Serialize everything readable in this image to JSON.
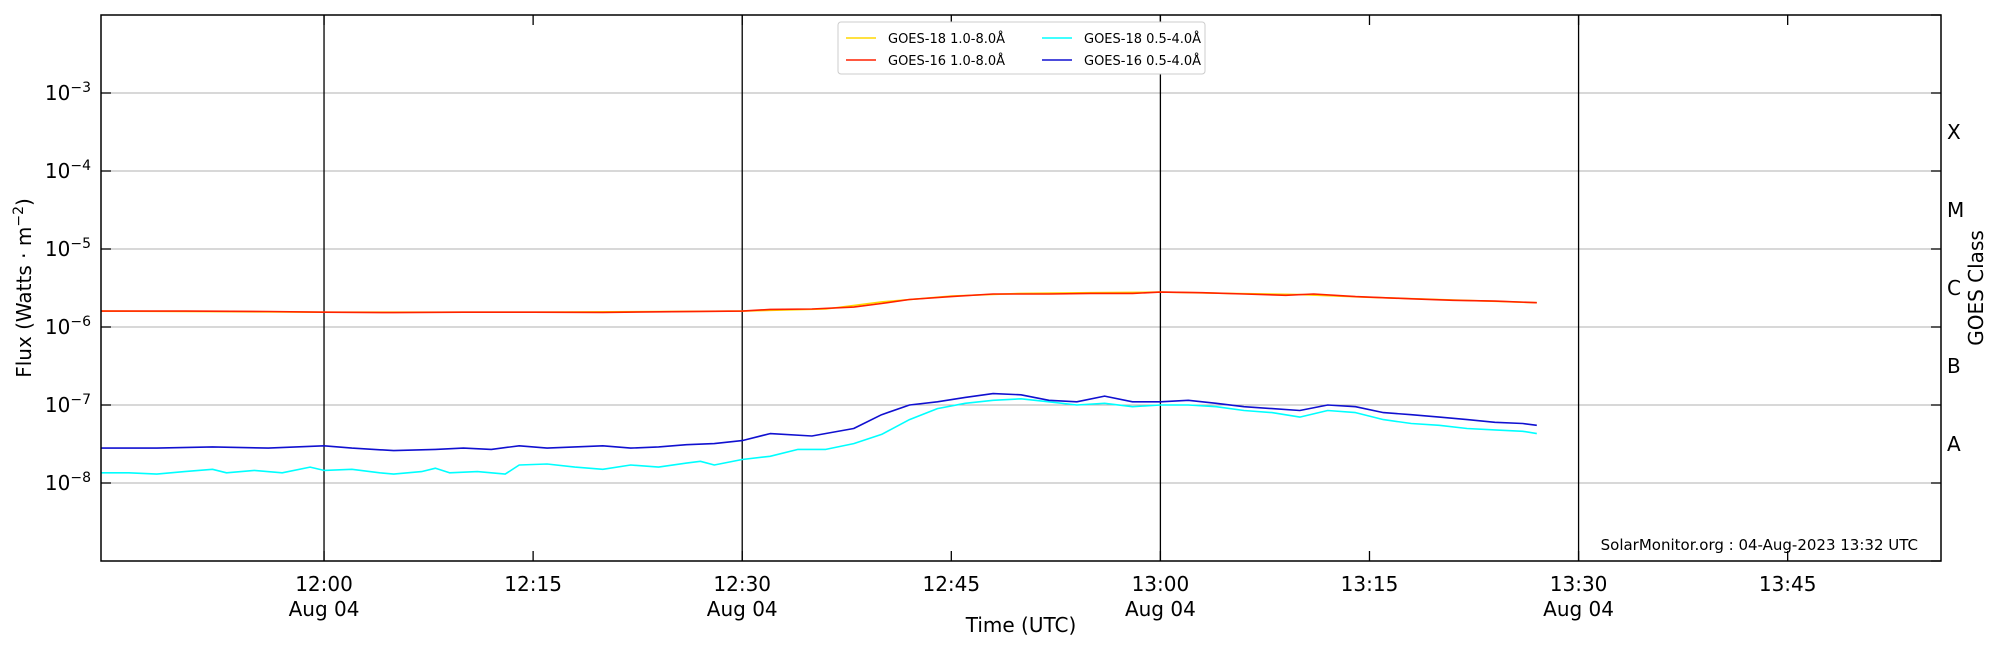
{
  "chart_data": {
    "type": "line",
    "xlabel": "Time (UTC)",
    "ylabel_main": "Flux (Watts · m",
    "ylabel_exp": "−2",
    "ylabel_close": ")",
    "y2label": "GOES Class",
    "yscale": "log",
    "xlim": [
      "11:44",
      "13:56"
    ],
    "ylim": [
      1e-09,
      0.01
    ],
    "grid": "horizontal at each decade",
    "x_ticks": [
      {
        "time": "12:00",
        "label": "12:00",
        "date": "Aug 04",
        "major": true
      },
      {
        "time": "12:15",
        "label": "12:15",
        "date": "",
        "major": false
      },
      {
        "time": "12:30",
        "label": "12:30",
        "date": "Aug 04",
        "major": true
      },
      {
        "time": "12:45",
        "label": "12:45",
        "date": "",
        "major": false
      },
      {
        "time": "13:00",
        "label": "13:00",
        "date": "Aug 04",
        "major": true
      },
      {
        "time": "13:15",
        "label": "13:15",
        "date": "",
        "major": false
      },
      {
        "time": "13:30",
        "label": "13:30",
        "date": "Aug 04",
        "major": true
      },
      {
        "time": "13:45",
        "label": "13:45",
        "date": "",
        "major": false
      }
    ],
    "y_ticks": [
      {
        "exp": -8,
        "label_base": "10",
        "label_exp": "−8"
      },
      {
        "exp": -7,
        "label_base": "10",
        "label_exp": "−7"
      },
      {
        "exp": -6,
        "label_base": "10",
        "label_exp": "−6"
      },
      {
        "exp": -5,
        "label_base": "10",
        "label_exp": "−5"
      },
      {
        "exp": -4,
        "label_base": "10",
        "label_exp": "−4"
      },
      {
        "exp": -3,
        "label_base": "10",
        "label_exp": "−3"
      }
    ],
    "goes_classes": [
      {
        "label": "A",
        "exp": -7.5
      },
      {
        "label": "B",
        "exp": -6.5
      },
      {
        "label": "C",
        "exp": -5.5
      },
      {
        "label": "M",
        "exp": -4.5
      },
      {
        "label": "X",
        "exp": -3.5
      }
    ],
    "legend_position": "top-center",
    "legend": [
      {
        "name": "GOES-18 1.0-8.0Å",
        "color": "#ffd700"
      },
      {
        "name": "GOES-16 1.0-8.0Å",
        "color": "#ff2000"
      },
      {
        "name": "GOES-18 0.5-4.0Å",
        "color": "#00ffff"
      },
      {
        "name": "GOES-16 0.5-4.0Å",
        "color": "#1010d0"
      }
    ],
    "series": [
      {
        "name": "GOES-18 1.0-8.0Å",
        "color": "#ffd700",
        "points": [
          [
            "11:44",
            1.6e-06
          ],
          [
            "12:00",
            1.55e-06
          ],
          [
            "12:15",
            1.55e-06
          ],
          [
            "12:30",
            1.6e-06
          ],
          [
            "12:36",
            1.7e-06
          ],
          [
            "12:40",
            2.1e-06
          ],
          [
            "12:45",
            2.5e-06
          ],
          [
            "12:50",
            2.7e-06
          ],
          [
            "12:55",
            2.75e-06
          ],
          [
            "13:00",
            2.8e-06
          ],
          [
            "13:05",
            2.7e-06
          ],
          [
            "13:10",
            2.6e-06
          ],
          [
            "13:15",
            2.4e-06
          ],
          [
            "13:20",
            2.25e-06
          ],
          [
            "13:27",
            2.05e-06
          ]
        ]
      },
      {
        "name": "GOES-16 1.0-8.0Å",
        "color": "#ff2000",
        "points": [
          [
            "11:44",
            1.6e-06
          ],
          [
            "11:50",
            1.6e-06
          ],
          [
            "11:56",
            1.58e-06
          ],
          [
            "12:00",
            1.55e-06
          ],
          [
            "12:05",
            1.53e-06
          ],
          [
            "12:10",
            1.55e-06
          ],
          [
            "12:15",
            1.55e-06
          ],
          [
            "12:20",
            1.54e-06
          ],
          [
            "12:25",
            1.57e-06
          ],
          [
            "12:30",
            1.6e-06
          ],
          [
            "12:32",
            1.68e-06
          ],
          [
            "12:35",
            1.7e-06
          ],
          [
            "12:38",
            1.8e-06
          ],
          [
            "12:40",
            2e-06
          ],
          [
            "12:42",
            2.25e-06
          ],
          [
            "12:45",
            2.45e-06
          ],
          [
            "12:48",
            2.65e-06
          ],
          [
            "12:52",
            2.65e-06
          ],
          [
            "12:55",
            2.7e-06
          ],
          [
            "12:58",
            2.7e-06
          ],
          [
            "13:00",
            2.8e-06
          ],
          [
            "13:03",
            2.75e-06
          ],
          [
            "13:06",
            2.65e-06
          ],
          [
            "13:09",
            2.55e-06
          ],
          [
            "13:11",
            2.65e-06
          ],
          [
            "13:14",
            2.45e-06
          ],
          [
            "13:18",
            2.3e-06
          ],
          [
            "13:21",
            2.2e-06
          ],
          [
            "13:24",
            2.15e-06
          ],
          [
            "13:27",
            2.05e-06
          ]
        ]
      },
      {
        "name": "GOES-18 0.5-4.0Å",
        "color": "#00ffff",
        "points": [
          [
            "11:44",
            1.35e-08
          ],
          [
            "11:46",
            1.35e-08
          ],
          [
            "11:48",
            1.3e-08
          ],
          [
            "11:50",
            1.4e-08
          ],
          [
            "11:52",
            1.5e-08
          ],
          [
            "11:53",
            1.35e-08
          ],
          [
            "11:55",
            1.45e-08
          ],
          [
            "11:57",
            1.35e-08
          ],
          [
            "11:59",
            1.6e-08
          ],
          [
            "12:00",
            1.45e-08
          ],
          [
            "12:02",
            1.5e-08
          ],
          [
            "12:04",
            1.35e-08
          ],
          [
            "12:05",
            1.3e-08
          ],
          [
            "12:07",
            1.4e-08
          ],
          [
            "12:08",
            1.55e-08
          ],
          [
            "12:09",
            1.35e-08
          ],
          [
            "12:11",
            1.4e-08
          ],
          [
            "12:13",
            1.3e-08
          ],
          [
            "12:14",
            1.7e-08
          ],
          [
            "12:16",
            1.75e-08
          ],
          [
            "12:18",
            1.6e-08
          ],
          [
            "12:20",
            1.5e-08
          ],
          [
            "12:22",
            1.7e-08
          ],
          [
            "12:24",
            1.6e-08
          ],
          [
            "12:26",
            1.8e-08
          ],
          [
            "12:27",
            1.9e-08
          ],
          [
            "12:28",
            1.7e-08
          ],
          [
            "12:30",
            2e-08
          ],
          [
            "12:32",
            2.2e-08
          ],
          [
            "12:34",
            2.7e-08
          ],
          [
            "12:36",
            2.7e-08
          ],
          [
            "12:38",
            3.2e-08
          ],
          [
            "12:40",
            4.2e-08
          ],
          [
            "12:42",
            6.5e-08
          ],
          [
            "12:44",
            9e-08
          ],
          [
            "12:46",
            1.05e-07
          ],
          [
            "12:48",
            1.15e-07
          ],
          [
            "12:50",
            1.2e-07
          ],
          [
            "12:52",
            1.1e-07
          ],
          [
            "12:54",
            1e-07
          ],
          [
            "12:56",
            1.05e-07
          ],
          [
            "12:58",
            9.5e-08
          ],
          [
            "13:00",
            1e-07
          ],
          [
            "13:02",
            1e-07
          ],
          [
            "13:04",
            9.5e-08
          ],
          [
            "13:06",
            8.5e-08
          ],
          [
            "13:08",
            8e-08
          ],
          [
            "13:10",
            7e-08
          ],
          [
            "13:12",
            8.5e-08
          ],
          [
            "13:14",
            8e-08
          ],
          [
            "13:16",
            6.5e-08
          ],
          [
            "13:18",
            5.8e-08
          ],
          [
            "13:20",
            5.5e-08
          ],
          [
            "13:22",
            5e-08
          ],
          [
            "13:24",
            4.8e-08
          ],
          [
            "13:26",
            4.6e-08
          ],
          [
            "13:27",
            4.3e-08
          ]
        ]
      },
      {
        "name": "GOES-16 0.5-4.0Å",
        "color": "#1010d0",
        "points": [
          [
            "11:44",
            2.8e-08
          ],
          [
            "11:48",
            2.8e-08
          ],
          [
            "11:52",
            2.9e-08
          ],
          [
            "11:56",
            2.8e-08
          ],
          [
            "12:00",
            3e-08
          ],
          [
            "12:02",
            2.8e-08
          ],
          [
            "12:05",
            2.6e-08
          ],
          [
            "12:08",
            2.7e-08
          ],
          [
            "12:10",
            2.8e-08
          ],
          [
            "12:12",
            2.7e-08
          ],
          [
            "12:14",
            3e-08
          ],
          [
            "12:16",
            2.8e-08
          ],
          [
            "12:18",
            2.9e-08
          ],
          [
            "12:20",
            3e-08
          ],
          [
            "12:22",
            2.8e-08
          ],
          [
            "12:24",
            2.9e-08
          ],
          [
            "12:26",
            3.1e-08
          ],
          [
            "12:28",
            3.2e-08
          ],
          [
            "12:30",
            3.5e-08
          ],
          [
            "12:32",
            4.3e-08
          ],
          [
            "12:35",
            4e-08
          ],
          [
            "12:38",
            5e-08
          ],
          [
            "12:40",
            7.5e-08
          ],
          [
            "12:42",
            1e-07
          ],
          [
            "12:44",
            1.1e-07
          ],
          [
            "12:46",
            1.25e-07
          ],
          [
            "12:48",
            1.4e-07
          ],
          [
            "12:50",
            1.35e-07
          ],
          [
            "12:52",
            1.15e-07
          ],
          [
            "12:54",
            1.1e-07
          ],
          [
            "12:56",
            1.3e-07
          ],
          [
            "12:58",
            1.1e-07
          ],
          [
            "13:00",
            1.1e-07
          ],
          [
            "13:02",
            1.15e-07
          ],
          [
            "13:04",
            1.05e-07
          ],
          [
            "13:06",
            9.5e-08
          ],
          [
            "13:08",
            9e-08
          ],
          [
            "13:10",
            8.5e-08
          ],
          [
            "13:12",
            1e-07
          ],
          [
            "13:14",
            9.5e-08
          ],
          [
            "13:16",
            8e-08
          ],
          [
            "13:18",
            7.5e-08
          ],
          [
            "13:20",
            7e-08
          ],
          [
            "13:22",
            6.5e-08
          ],
          [
            "13:24",
            6e-08
          ],
          [
            "13:26",
            5.8e-08
          ],
          [
            "13:27",
            5.5e-08
          ]
        ]
      }
    ],
    "credit": "SolarMonitor.org : 04-Aug-2023 13:32 UTC"
  }
}
